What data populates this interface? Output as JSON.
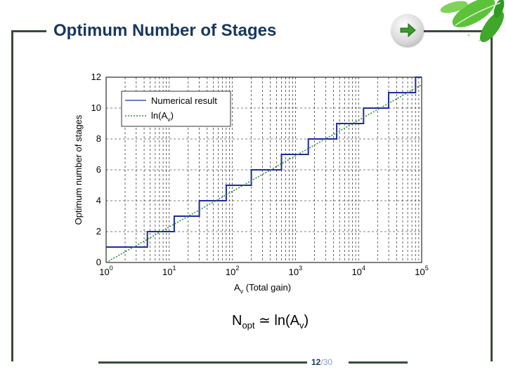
{
  "slide": {
    "title": "Optimum Number of Stages",
    "formula": {
      "lhs": "N",
      "lhs_sub": "opt",
      "rel": "≃",
      "rhs_a": "ln(A",
      "rhs_sub": "v",
      "rhs_b": ")"
    },
    "page": {
      "current": "12",
      "separator": "/",
      "total": "30"
    },
    "colors": {
      "frame": "#3a4a3a",
      "title": "#17375e",
      "arrow": "#3a9a2a"
    },
    "icons": {
      "next": "right-arrow-icon",
      "decoration": "green-leaves"
    }
  },
  "chart_data": {
    "type": "line",
    "xscale": "log",
    "xlim": [
      1,
      100000
    ],
    "ylim": [
      0,
      12
    ],
    "xticks": [
      1,
      10,
      100,
      1000,
      10000,
      100000
    ],
    "xtick_labels": [
      {
        "base": "10",
        "exp": "0"
      },
      {
        "base": "10",
        "exp": "1"
      },
      {
        "base": "10",
        "exp": "2"
      },
      {
        "base": "10",
        "exp": "3"
      },
      {
        "base": "10",
        "exp": "4"
      },
      {
        "base": "10",
        "exp": "5"
      }
    ],
    "yticks": [
      0,
      2,
      4,
      6,
      8,
      10,
      12
    ],
    "ytick_labels": [
      "0",
      "2",
      "4",
      "6",
      "8",
      "10",
      "12"
    ],
    "xlabel": {
      "main": "A",
      "sub": "v",
      "rest": " (Total gain)"
    },
    "ylabel": "Optimum number of stages",
    "grid": true,
    "legend_position": "top-left",
    "legend": [
      {
        "text": "Numerical result",
        "style": "solid"
      },
      {
        "text": "ln(A",
        "sub": "v",
        "tail": ")",
        "style": "dotted"
      }
    ],
    "series": [
      {
        "name": "Numerical result",
        "color": "#1f2a9e",
        "style": "step",
        "x": [
          1,
          4.5,
          4.5,
          12,
          12,
          30,
          30,
          80,
          80,
          200,
          200,
          600,
          600,
          1600,
          1600,
          4500,
          4500,
          12000,
          12000,
          30000,
          30000,
          80000,
          80000,
          100000
        ],
        "y": [
          1,
          1,
          2,
          2,
          3,
          3,
          4,
          4,
          5,
          5,
          6,
          6,
          7,
          7,
          8,
          8,
          9,
          9,
          10,
          10,
          11,
          11,
          12,
          12
        ]
      },
      {
        "name": "ln(Av)",
        "color": "#2e8b3a",
        "style": "dotted",
        "x": [
          1,
          100000
        ],
        "y": [
          0,
          11.513
        ]
      }
    ]
  }
}
